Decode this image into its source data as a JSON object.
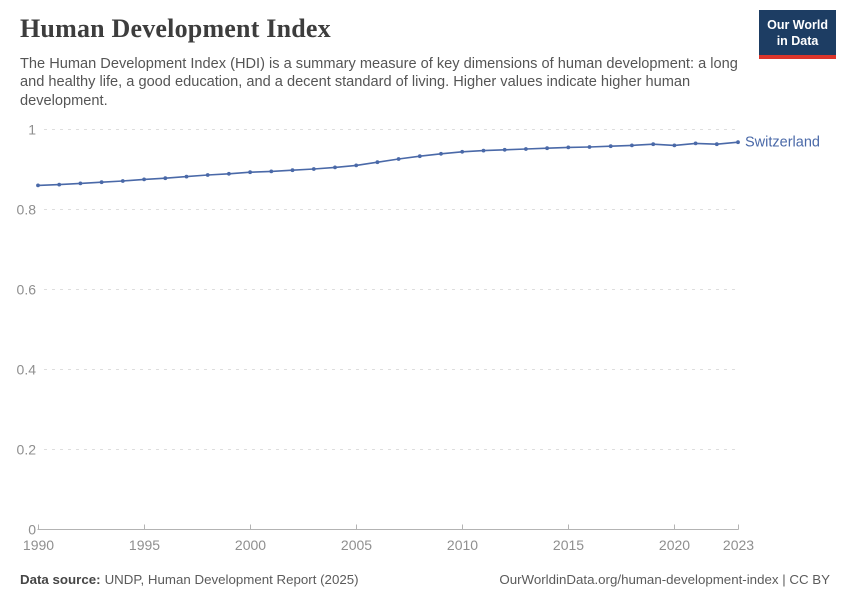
{
  "header": {
    "title": "Human Development Index",
    "subtitle": "The Human Development Index (HDI) is a summary measure of key dimensions of human development: a long and healthy life, a good education, and a decent standard of living. Higher values indicate higher human development.",
    "logo": {
      "line1": "Our World",
      "line2": "in Data",
      "bg_color": "#1d3d63",
      "accent_color": "#dc352b"
    }
  },
  "chart_data": {
    "type": "line",
    "title": "Human Development Index",
    "xlabel": "",
    "ylabel": "",
    "x": [
      1990,
      1991,
      1992,
      1993,
      1994,
      1995,
      1996,
      1997,
      1998,
      1999,
      2000,
      2001,
      2002,
      2003,
      2004,
      2005,
      2006,
      2007,
      2008,
      2009,
      2010,
      2011,
      2012,
      2013,
      2014,
      2015,
      2016,
      2017,
      2018,
      2019,
      2020,
      2021,
      2022,
      2023
    ],
    "series": [
      {
        "name": "Switzerland",
        "color": "#4a69a8",
        "values": [
          0.859,
          0.861,
          0.864,
          0.867,
          0.87,
          0.874,
          0.877,
          0.881,
          0.885,
          0.888,
          0.892,
          0.894,
          0.897,
          0.9,
          0.904,
          0.909,
          0.917,
          0.925,
          0.932,
          0.938,
          0.943,
          0.946,
          0.948,
          0.95,
          0.952,
          0.954,
          0.955,
          0.957,
          0.959,
          0.962,
          0.959,
          0.964,
          0.962,
          0.967
        ]
      }
    ],
    "ylim": [
      0,
      1
    ],
    "yticks": [
      0,
      0.2,
      0.4,
      0.6,
      0.8,
      1
    ],
    "ytick_labels": [
      "0",
      "0.2",
      "0.4",
      "0.6",
      "0.8",
      "1"
    ],
    "xticks": [
      1990,
      1995,
      2000,
      2005,
      2010,
      2015,
      2020,
      2023
    ],
    "grid": "horizontal-dashed",
    "legend": "end-of-line-label",
    "colors": {
      "grid": "#dedede",
      "axis": "#b3b3b3",
      "tick_text": "#8f8f8f"
    }
  },
  "footer": {
    "datasource_label": "Data source:",
    "datasource_value": "UNDP, Human Development Report (2025)",
    "url": "OurWorldinData.org/human-development-index",
    "separator": " | ",
    "license": "CC BY"
  }
}
